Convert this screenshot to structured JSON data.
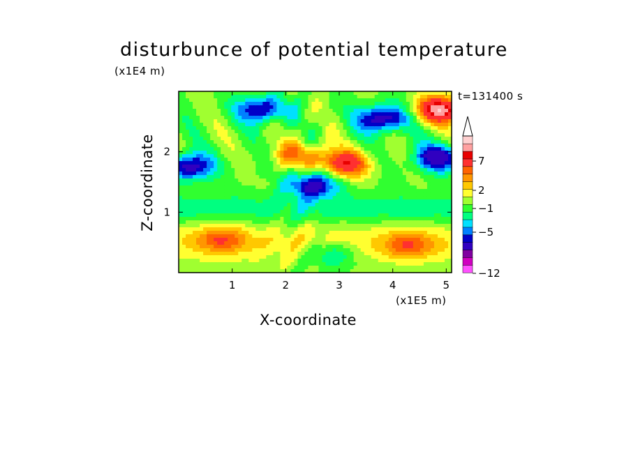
{
  "chart_data": {
    "type": "heatmap",
    "title": "disturbunce of potential temperature",
    "xlabel": "X-coordinate",
    "ylabel": "Z-coordinate",
    "x_units": "(x1E5 m)",
    "y_units": "(x1E4 m)",
    "time_label": "t=131400 s",
    "xlim": [
      0,
      5.1
    ],
    "ylim": [
      0,
      3.0
    ],
    "x_ticks": [
      1,
      2,
      3,
      4,
      5
    ],
    "y_ticks": [
      1,
      2
    ],
    "colorbar": {
      "labels": [
        "7",
        "2",
        "−1",
        "−5",
        "−12"
      ],
      "colors": [
        "#ff50ff",
        "#d000c0",
        "#8000a0",
        "#3000c0",
        "#0000c8",
        "#0080ff",
        "#00e0ff",
        "#00ff80",
        "#30ff30",
        "#a0ff30",
        "#ffff30",
        "#ffc800",
        "#ff9600",
        "#ff6400",
        "#ff3030",
        "#e80000",
        "#ffa0a0",
        "#ffd0d0"
      ]
    },
    "levels": [
      -12,
      -11,
      -9,
      -7,
      -5,
      -4,
      -3,
      -2,
      -1,
      0,
      1,
      2,
      3,
      4,
      5,
      7,
      8,
      9
    ],
    "features": [
      {
        "x": 0.8,
        "z": 0.55,
        "amp": 3.5,
        "note": "warm band low left"
      },
      {
        "x": 4.3,
        "z": 0.45,
        "amp": 3.5,
        "note": "warm band low right"
      },
      {
        "x": 2.25,
        "z": 1.95,
        "amp": 4.0,
        "note": "warm core center"
      },
      {
        "x": 2.5,
        "z": 1.45,
        "amp": -6.0,
        "note": "cold band center"
      },
      {
        "x": 4.85,
        "z": 1.9,
        "amp": -6.0,
        "note": "cold right"
      },
      {
        "x": 0.2,
        "z": 1.75,
        "amp": -6.0,
        "note": "cold left"
      },
      {
        "x": 3.8,
        "z": 2.55,
        "amp": -6.5,
        "note": "cold upper right"
      },
      {
        "x": 4.9,
        "z": 2.7,
        "amp": 8.5,
        "note": "hot upper right corner"
      },
      {
        "x": 3.1,
        "z": 1.8,
        "amp": 6.5,
        "note": "hot ridge"
      },
      {
        "x": 1.55,
        "z": 2.7,
        "amp": -5.5,
        "note": "cold top left"
      },
      {
        "x": 2.85,
        "z": 0.3,
        "amp": -3.0,
        "note": "cool pocket low"
      }
    ]
  }
}
